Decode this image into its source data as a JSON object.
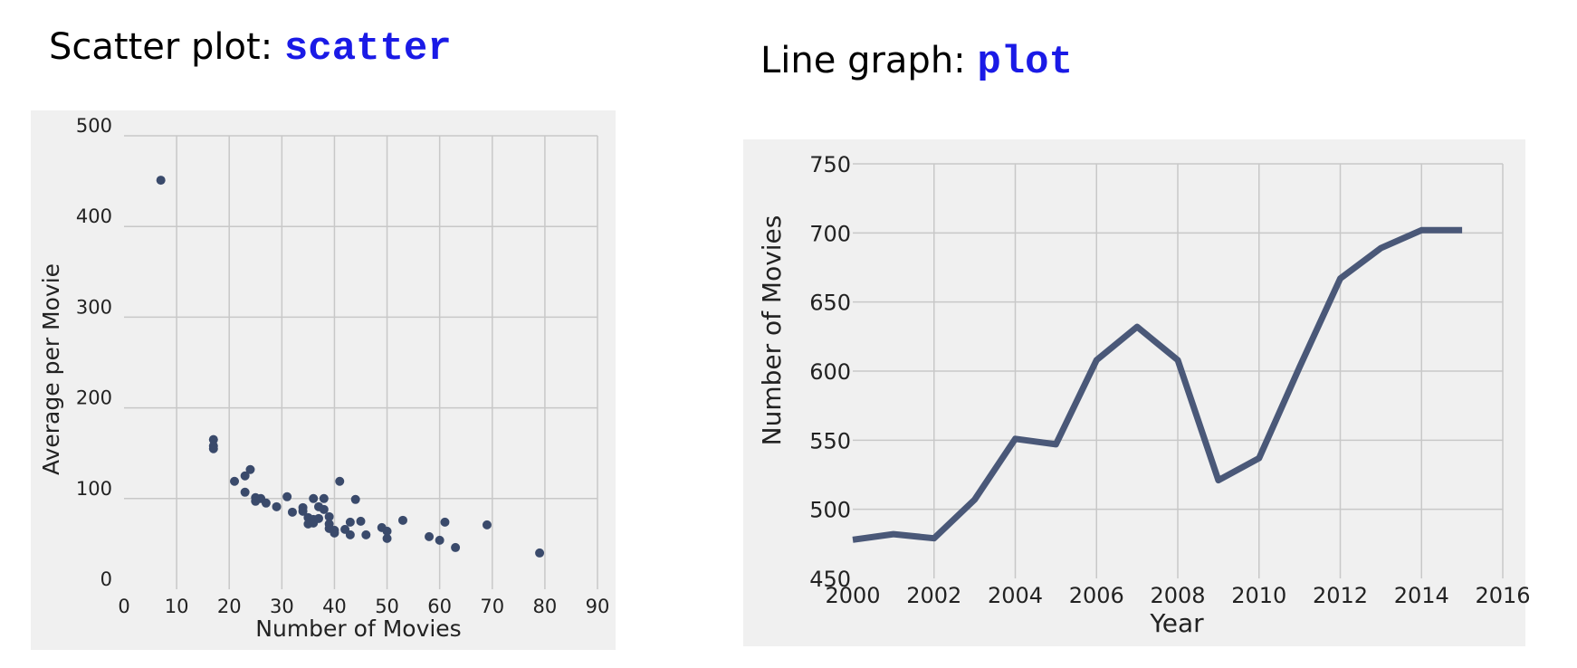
{
  "slide": {
    "left_title": {
      "prefix": "Scatter plot: ",
      "code": "scatter"
    },
    "right_title": {
      "prefix": "Line graph: ",
      "code": "plot"
    }
  },
  "colors": {
    "marker": "#3a4a6b",
    "line": "#4a5878",
    "grid": "#c8c8c8",
    "panel": "#f0f0f0",
    "code": "#1a1ae6"
  },
  "chart_data": [
    {
      "type": "scatter",
      "title": "",
      "xlabel": "Number of Movies",
      "ylabel": "Average per Movie",
      "xlim": [
        0,
        90
      ],
      "ylim": [
        0,
        500
      ],
      "xticks": [
        0,
        10,
        20,
        30,
        40,
        50,
        60,
        70,
        80,
        90
      ],
      "yticks": [
        0,
        100,
        200,
        300,
        400,
        500
      ],
      "grid": true,
      "points": [
        [
          7,
          451
        ],
        [
          17,
          165
        ],
        [
          17,
          158
        ],
        [
          17,
          155
        ],
        [
          21,
          119
        ],
        [
          23,
          107
        ],
        [
          23,
          125
        ],
        [
          24,
          132
        ],
        [
          25,
          97
        ],
        [
          25,
          101
        ],
        [
          26,
          100
        ],
        [
          27,
          95
        ],
        [
          29,
          91
        ],
        [
          31,
          102
        ],
        [
          32,
          85
        ],
        [
          34,
          90
        ],
        [
          34,
          86
        ],
        [
          35,
          79
        ],
        [
          35,
          72
        ],
        [
          36,
          100
        ],
        [
          36,
          77
        ],
        [
          36,
          73
        ],
        [
          37,
          78
        ],
        [
          37,
          91
        ],
        [
          38,
          100
        ],
        [
          38,
          88
        ],
        [
          39,
          80
        ],
        [
          39,
          72
        ],
        [
          39,
          67
        ],
        [
          40,
          65
        ],
        [
          40,
          62
        ],
        [
          41,
          119
        ],
        [
          42,
          66
        ],
        [
          43,
          60
        ],
        [
          43,
          74
        ],
        [
          44,
          99
        ],
        [
          45,
          75
        ],
        [
          46,
          60
        ],
        [
          49,
          68
        ],
        [
          50,
          64
        ],
        [
          50,
          56
        ],
        [
          53,
          76
        ],
        [
          58,
          58
        ],
        [
          60,
          54
        ],
        [
          61,
          74
        ],
        [
          63,
          46
        ],
        [
          69,
          71
        ],
        [
          79,
          40
        ]
      ]
    },
    {
      "type": "line",
      "title": "",
      "xlabel": "Year",
      "ylabel": "Number of Movies",
      "xlim": [
        2000,
        2016
      ],
      "ylim": [
        450,
        750
      ],
      "xticks": [
        2000,
        2002,
        2004,
        2006,
        2008,
        2010,
        2012,
        2014,
        2016
      ],
      "yticks": [
        450,
        500,
        550,
        600,
        650,
        700,
        750
      ],
      "grid": true,
      "x": [
        2000,
        2001,
        2002,
        2003,
        2004,
        2005,
        2006,
        2007,
        2008,
        2009,
        2010,
        2011,
        2012,
        2013,
        2014,
        2015
      ],
      "y": [
        478,
        482,
        479,
        507,
        551,
        547,
        608,
        632,
        608,
        521,
        537,
        603,
        667,
        689,
        702,
        702
      ]
    }
  ]
}
